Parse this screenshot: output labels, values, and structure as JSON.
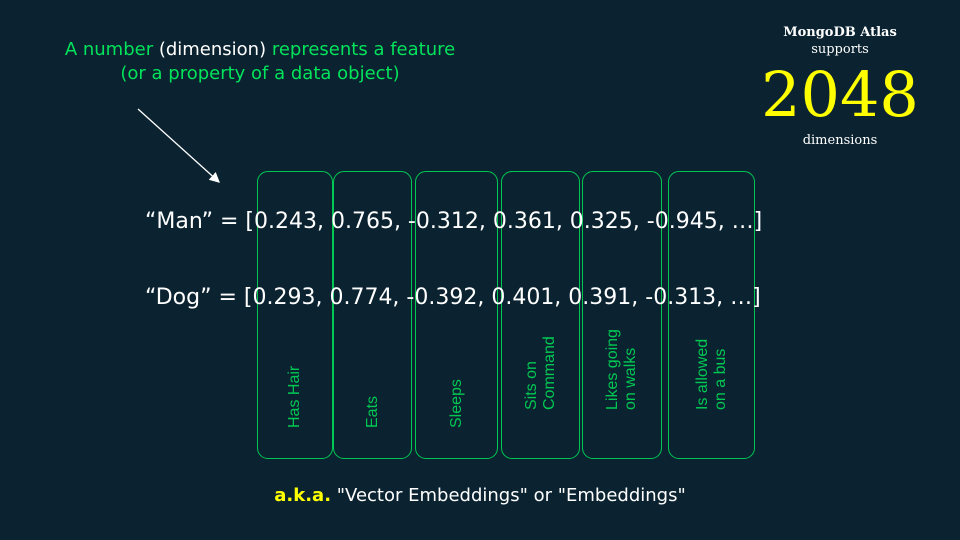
{
  "annotation": {
    "part1": "A number ",
    "part2": "(dimension)",
    "part3": " represents a feature ",
    "part4": "(or a property of a data object)"
  },
  "atlas": {
    "name": "MongoDB Atlas",
    "supports": "supports",
    "number": "2048",
    "unit": "dimensions"
  },
  "vectors": {
    "man": "“Man” = [0.243, 0.765, -0.312, 0.361, 0.325, -0.945, …]",
    "dog": "“Dog” = [0.293, 0.774, -0.392, 0.401, 0.391, -0.313, …]"
  },
  "features": [
    "Has Hair",
    "Eats",
    "Sleeps",
    "Sits on\nCommand",
    "Likes going\non walks",
    "Is allowed\non a bus"
  ],
  "footer": {
    "aka": "a.k.a.",
    "rest": " \"Vector Embeddings\" or \"Embeddings\""
  },
  "colors": {
    "background": "#0b2330",
    "green": "#00e35a",
    "feature_green": "#00c853",
    "yellow": "#ffff00"
  }
}
